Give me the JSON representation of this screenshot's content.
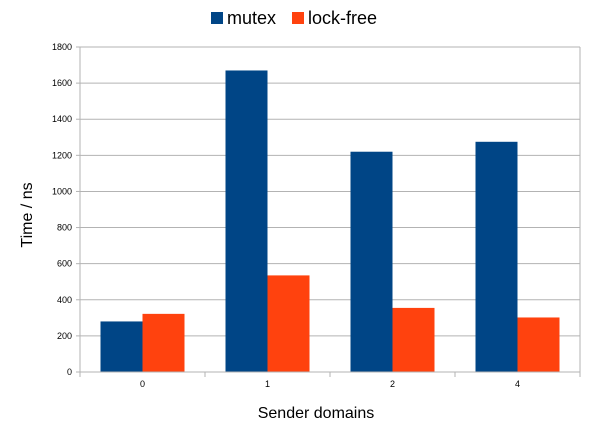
{
  "chart_data": {
    "type": "bar",
    "categories": [
      "0",
      "1",
      "2",
      "4"
    ],
    "series": [
      {
        "name": "mutex",
        "values": [
          280,
          1670,
          1220,
          1275
        ],
        "color": "#004586"
      },
      {
        "name": "lock-free",
        "values": [
          322,
          535,
          355,
          302
        ],
        "color": "#ff420e"
      }
    ],
    "xlabel": "Sender domains",
    "ylabel": "Time / ns",
    "ylim": [
      0,
      1800
    ],
    "yticks": [
      0,
      200,
      400,
      600,
      800,
      1000,
      1200,
      1400,
      1600,
      1800
    ],
    "grid": true,
    "legend_position": "top-center"
  }
}
